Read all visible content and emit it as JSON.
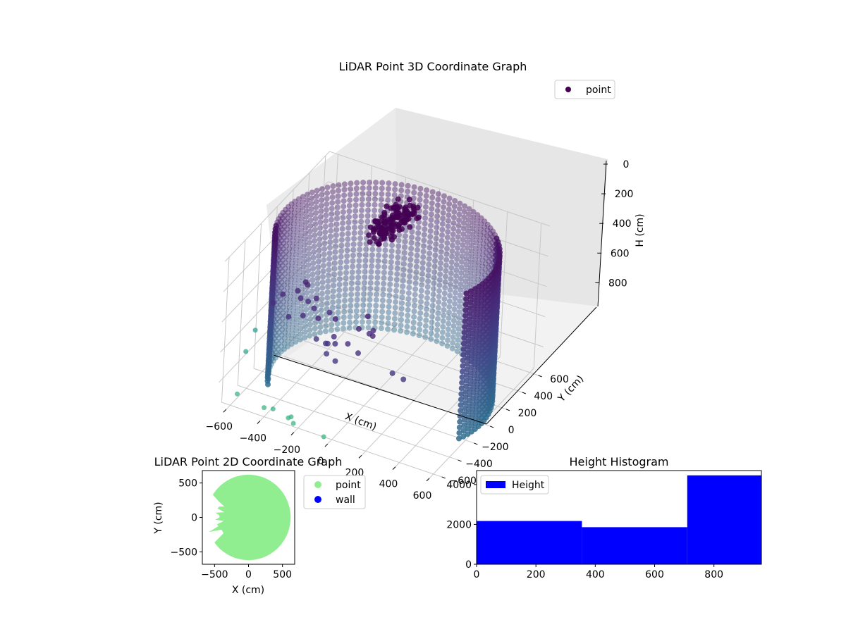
{
  "chart_data": [
    {
      "type": "scatter",
      "projection": "3d",
      "title": "LiDAR Point 3D Coordinate Graph",
      "xlabel": "X (cm)",
      "ylabel": "Y (cm)",
      "zlabel": "H (cm)",
      "xticks": [
        "−600",
        "−400",
        "−200",
        "0",
        "200",
        "400",
        "600"
      ],
      "yticks": [
        "−600",
        "−400",
        "−200",
        "0",
        "200",
        "400",
        "600"
      ],
      "zticks": [
        "0",
        "200",
        "400",
        "600",
        "800"
      ],
      "xlim": [
        -650,
        650
      ],
      "ylim": [
        -650,
        650
      ],
      "zlim": [
        960,
        0
      ],
      "zaxis_inverted": true,
      "legend": {
        "placement": "upper-right",
        "entries": [
          {
            "label": "point",
            "color": "#440154"
          }
        ]
      },
      "colormap": "viridis (by height)",
      "wall_radius": 600,
      "wall_height_range": [
        0,
        960
      ],
      "wall_arc_start_deg": 340,
      "wall_arc_end_deg": 210,
      "cluster": {
        "x_range": [
          -170,
          -30
        ],
        "y_range": [
          100,
          500
        ],
        "h_range": [
          0,
          120
        ]
      },
      "outliers": [
        {
          "x": -580,
          "y": -560,
          "h": 900
        },
        {
          "x": -420,
          "y": -560,
          "h": 930
        },
        {
          "x": -260,
          "y": -560,
          "h": 930
        },
        {
          "x": -350,
          "y": -600,
          "h": 890
        },
        {
          "x": -250,
          "y": -620,
          "h": 900
        },
        {
          "x": -210,
          "y": -640,
          "h": 910
        },
        {
          "x": -30,
          "y": -640,
          "h": 930
        },
        {
          "x": -600,
          "y": -430,
          "h": 700
        },
        {
          "x": -600,
          "y": -320,
          "h": 620
        }
      ],
      "grid": true
    },
    {
      "type": "scatter",
      "title": "LiDAR Point 2D Coordinate Graph",
      "xlabel": "X (cm)",
      "ylabel": "Y (cm)",
      "xticks": [
        "−500",
        "0",
        "500"
      ],
      "yticks": [
        "500",
        "0",
        "−500"
      ],
      "xlim": [
        -680,
        680
      ],
      "ylim": [
        -680,
        680
      ],
      "legend": {
        "placement": "outside-right",
        "entries": [
          {
            "label": "point",
            "color": "#90ee90"
          },
          {
            "label": "wall",
            "color": "#0000ff"
          }
        ]
      },
      "disk_radius": 620,
      "grid": false
    },
    {
      "type": "bar",
      "title": "Height Histogram",
      "xticks": [
        "0",
        "200",
        "400",
        "600",
        "800"
      ],
      "yticks": [
        "0",
        "2000",
        "4000"
      ],
      "bins": [
        {
          "start": 0,
          "end": 355,
          "count": 2170
        },
        {
          "start": 355,
          "end": 710,
          "count": 1860
        },
        {
          "start": 710,
          "end": 960,
          "count": 4460
        }
      ],
      "xlim": [
        0,
        960
      ],
      "ylim": [
        0,
        4700
      ],
      "color": "#0000ff",
      "legend": {
        "placement": "upper-left",
        "entries": [
          {
            "label": "Height",
            "color": "#0000ff"
          }
        ]
      },
      "grid": false
    }
  ]
}
